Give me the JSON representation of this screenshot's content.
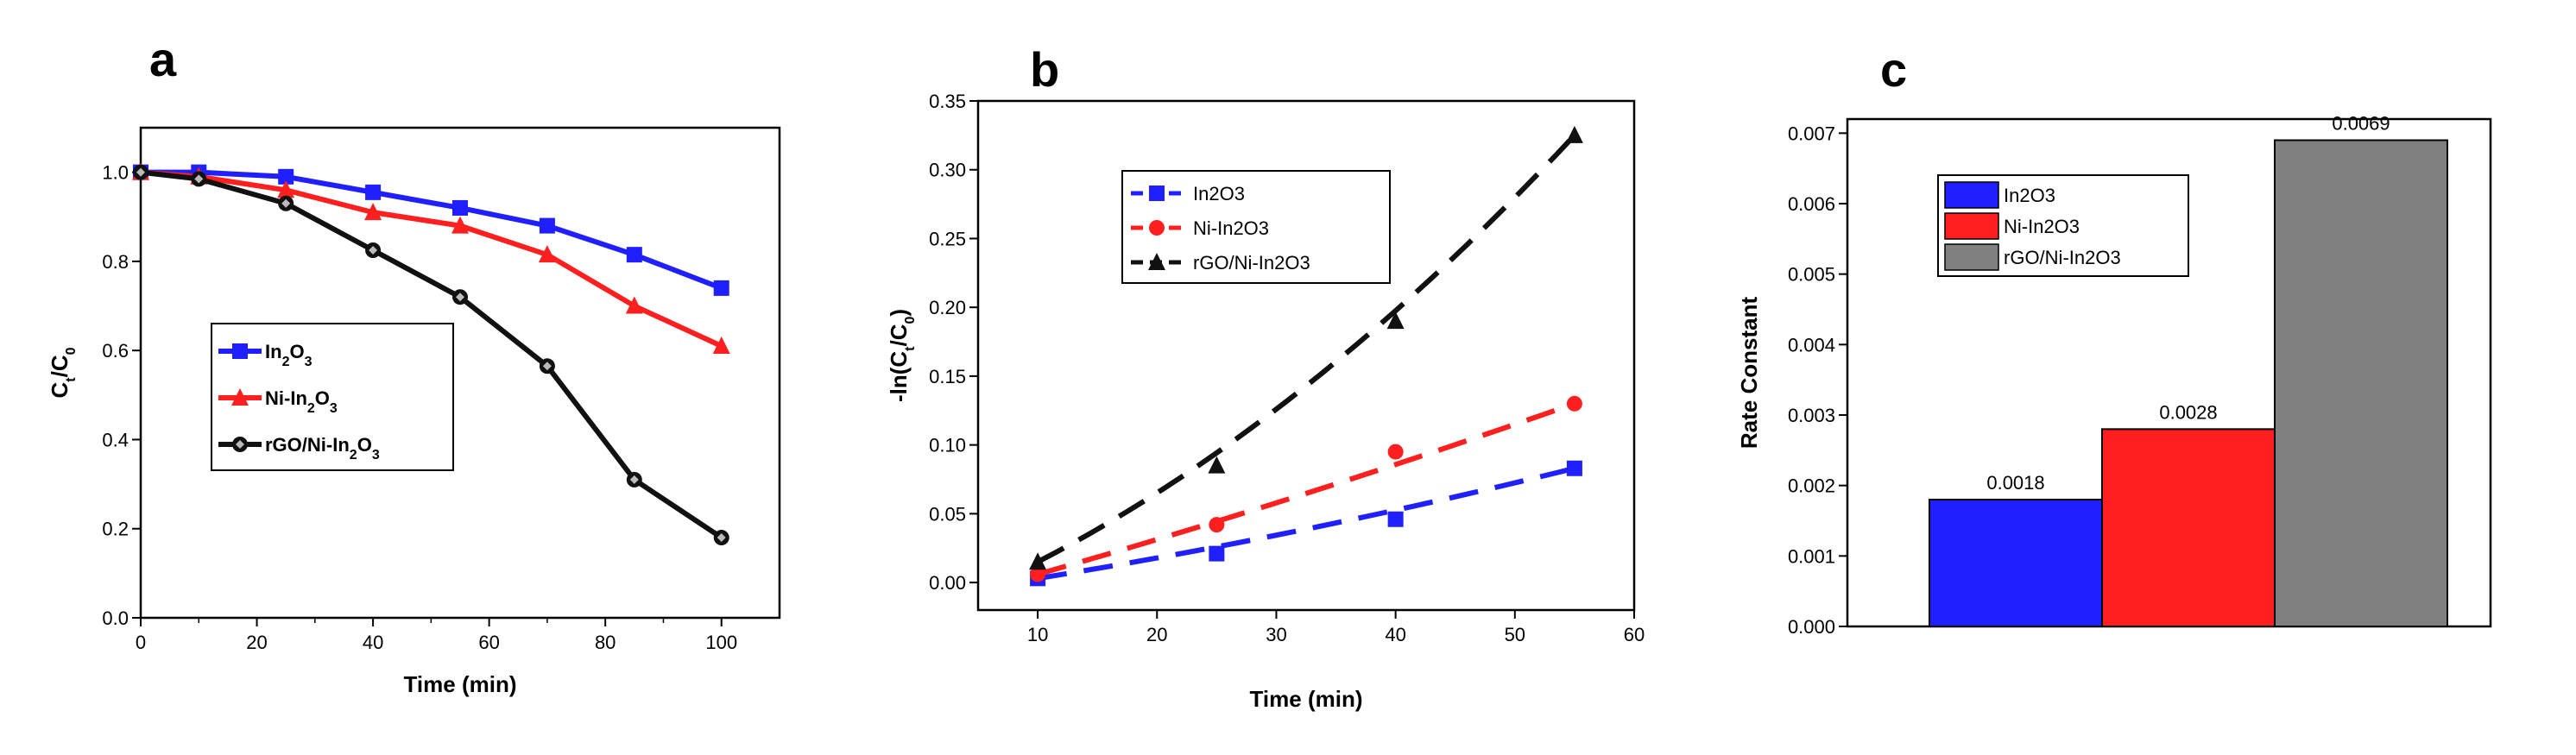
{
  "colors": {
    "blue": "#1f1fff",
    "red": "#ff1f1f",
    "black": "#111111",
    "gray": "#808080"
  },
  "chart_data": [
    {
      "id": "a",
      "panel_label": "a",
      "type": "line",
      "xlabel": "Time (min)",
      "ylabel": {
        "main": "C",
        "sub1": "t",
        "sep": "/C",
        "sub2": "0"
      },
      "xlim": [
        0,
        110
      ],
      "ylim": [
        0,
        1.1
      ],
      "xticks": [
        0,
        20,
        40,
        60,
        80,
        100
      ],
      "yticks": [
        0.0,
        0.2,
        0.4,
        0.6,
        0.8,
        1.0
      ],
      "xtick_labels": [
        "0",
        "20",
        "40",
        "60",
        "80",
        "100"
      ],
      "ytick_labels": [
        "0.0",
        "0.2",
        "0.4",
        "0.6",
        "0.8",
        "1.0"
      ],
      "legend_position": "center-left",
      "series": [
        {
          "name": "In2O3",
          "label_parts": [
            "In",
            "2",
            "O",
            "3"
          ],
          "color": "#1f1fff",
          "marker": "square",
          "line": "solid",
          "x": [
            0,
            10,
            25,
            40,
            55,
            70,
            85,
            100
          ],
          "y": [
            1.0,
            1.0,
            0.99,
            0.955,
            0.92,
            0.88,
            0.815,
            0.74
          ]
        },
        {
          "name": "Ni-In2O3",
          "label_parts": [
            "Ni-In",
            "2",
            "O",
            "3"
          ],
          "color": "#ff1f1f",
          "marker": "triangle",
          "line": "solid",
          "x": [
            0,
            10,
            25,
            40,
            55,
            70,
            85,
            100
          ],
          "y": [
            1.0,
            0.99,
            0.96,
            0.91,
            0.88,
            0.815,
            0.7,
            0.61
          ]
        },
        {
          "name": "rGO/Ni-In2O3",
          "label_parts": [
            "rGO/Ni-In",
            "2",
            "O",
            "3"
          ],
          "color": "#111111",
          "marker": "diamond",
          "line": "solid",
          "x": [
            0,
            10,
            25,
            40,
            55,
            70,
            85,
            100
          ],
          "y": [
            1.0,
            0.985,
            0.93,
            0.825,
            0.72,
            0.565,
            0.31,
            0.18
          ]
        }
      ]
    },
    {
      "id": "b",
      "panel_label": "b",
      "type": "scatter",
      "xlabel": "Time (min)",
      "ylabel": {
        "main": "-ln(C",
        "sub1": "t",
        "sep": "/C",
        "sub2": "0",
        "tail": ")"
      },
      "xlim": [
        5,
        60
      ],
      "ylim": [
        -0.02,
        0.35
      ],
      "xticks": [
        10,
        20,
        30,
        40,
        50,
        60
      ],
      "yticks": [
        0.0,
        0.05,
        0.1,
        0.15,
        0.2,
        0.25,
        0.3,
        0.35
      ],
      "xtick_labels": [
        "10",
        "20",
        "30",
        "40",
        "50",
        "60"
      ],
      "ytick_labels": [
        "0.00",
        "0.05",
        "0.10",
        "0.15",
        "0.20",
        "0.25",
        "0.30",
        "0.35"
      ],
      "legend_position": "top-left",
      "series": [
        {
          "name": "In2O3",
          "label_parts": [
            "In2O3"
          ],
          "color": "#1f1fff",
          "marker": "square",
          "line": "dashed",
          "x": [
            10,
            25,
            40,
            55
          ],
          "y": [
            0.003,
            0.021,
            0.046,
            0.083
          ],
          "fit_x": [
            10,
            55
          ],
          "fit_y": [
            0.003,
            0.083
          ],
          "fit_curve": 0.6
        },
        {
          "name": "Ni-In2O3",
          "label_parts": [
            "Ni-In2O3"
          ],
          "color": "#ff1f1f",
          "marker": "circle",
          "line": "dashed",
          "x": [
            10,
            25,
            40,
            55
          ],
          "y": [
            0.006,
            0.042,
            0.095,
            0.13
          ],
          "fit_x": [
            10,
            55
          ],
          "fit_y": [
            0.006,
            0.13
          ],
          "fit_curve": 0.3
        },
        {
          "name": "rGO/Ni-In2O3",
          "label_parts": [
            "rGO/Ni-In2O3"
          ],
          "color": "#111111",
          "marker": "triangle",
          "line": "dashed",
          "x": [
            10,
            25,
            40,
            55
          ],
          "y": [
            0.015,
            0.085,
            0.19,
            0.325
          ],
          "fit_x": [
            10,
            55
          ],
          "fit_y": [
            0.015,
            0.325
          ],
          "fit_curve": 1.0
        }
      ]
    },
    {
      "id": "c",
      "panel_label": "c",
      "type": "bar",
      "xlabel": "",
      "ylabel": "Rate Constant",
      "ylim": [
        0,
        0.0072
      ],
      "yticks": [
        0.0,
        0.001,
        0.002,
        0.003,
        0.004,
        0.005,
        0.006,
        0.007
      ],
      "ytick_labels": [
        "0.000",
        "0.001",
        "0.002",
        "0.003",
        "0.004",
        "0.005",
        "0.006",
        "0.007"
      ],
      "legend_position": "top-left",
      "categories": [
        "In2O3",
        "Ni-In2O3",
        "rGO/Ni-In2O3"
      ],
      "values": [
        0.0018,
        0.0028,
        0.0069
      ],
      "value_labels": [
        "0.0018",
        "0.0028",
        "0.0069"
      ],
      "colors": [
        "#1f1fff",
        "#ff1f1f",
        "#808080"
      ]
    }
  ]
}
